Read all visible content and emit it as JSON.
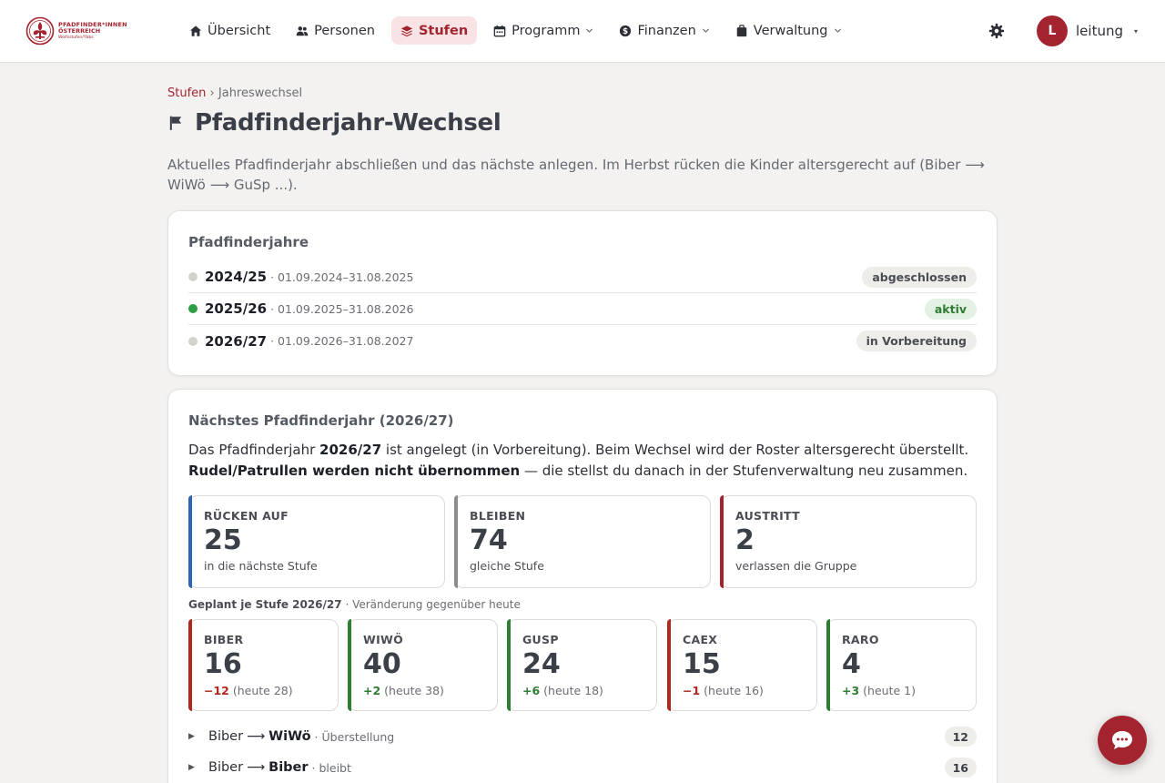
{
  "brand": {
    "line1": "PFADFINDER*INNEN",
    "line2": "ÖSTERREICH",
    "line3": "Wolfsstufen/Ybbs",
    "color": "#a3242f"
  },
  "nav": {
    "items": [
      {
        "label": "Übersicht",
        "icon": "home-icon"
      },
      {
        "label": "Personen",
        "icon": "users-icon"
      },
      {
        "label": "Stufen",
        "icon": "layers-icon",
        "active": true
      },
      {
        "label": "Programm",
        "icon": "calendar-icon",
        "dropdown": true
      },
      {
        "label": "Finanzen",
        "icon": "dollar-icon",
        "dropdown": true
      },
      {
        "label": "Verwaltung",
        "icon": "briefcase-icon",
        "dropdown": true
      }
    ],
    "settings_icon": "gear-icon",
    "user": {
      "initial": "L",
      "name": "leitung",
      "caret": "▾"
    }
  },
  "breadcrumb": {
    "parent": "Stufen",
    "separator": "›",
    "current": "Jahreswechsel"
  },
  "page": {
    "title": "Pfadfinderjahr-Wechsel",
    "title_icon": "flag-icon",
    "lead": "Aktuelles Pfadfinderjahr abschließen und das nächste anlegen. Im Herbst rücken die Kinder altersgerecht auf (Biber ⟶ WiWö ⟶ GuSp ...)."
  },
  "years_card": {
    "title": "Pfadfinderjahre",
    "rows": [
      {
        "name": "2024/25",
        "dates": "· 01.09.2024–31.08.2025",
        "status": "abgeschlossen",
        "dot_color": "#d4d2cf",
        "badge": "grey"
      },
      {
        "name": "2025/26",
        "dates": "· 01.09.2025–31.08.2026",
        "status": "aktiv",
        "dot_color": "#2e9e44",
        "badge": "green"
      },
      {
        "name": "2026/27",
        "dates": "· 01.09.2026–31.08.2027",
        "status": "in Vorbereitung",
        "dot_color": "#d4d2cf",
        "badge": "grey"
      }
    ]
  },
  "next_card": {
    "title": "Nächstes Pfadfinderjahr (2026/27)",
    "intro_a": "Das Pfadfinderjahr ",
    "intro_year": "2026/27",
    "intro_b": " ist angelegt (in Vorbereitung). Beim Wechsel wird der Roster altersgerecht überstellt.",
    "intro_bold": "Rudel/Patrullen werden nicht übernommen",
    "intro_c": " — die stellst du danach in der Stufenverwaltung neu zusammen.",
    "stats": [
      {
        "label": "RÜCKEN AUF",
        "value": "25",
        "sub": "in die nächste Stufe",
        "color": "#2f64b5"
      },
      {
        "label": "BLEIBEN",
        "value": "74",
        "sub": "gleiche Stufe",
        "color": "#8c8c8c"
      },
      {
        "label": "AUSTRITT",
        "value": "2",
        "sub": "verlassen die Gruppe",
        "color": "#a3242f"
      }
    ],
    "plan_title": "Geplant je Stufe 2026/27",
    "plan_note": "· Veränderung gegenüber heute",
    "tiles": [
      {
        "label": "BIBER",
        "value": "16",
        "delta": "−12",
        "delta_kind": "neg",
        "today": "(heute 28)",
        "color": "#b3261e"
      },
      {
        "label": "WIWÖ",
        "value": "40",
        "delta": "+2",
        "delta_kind": "pos",
        "today": "(heute 38)",
        "color": "#2e7d32"
      },
      {
        "label": "GUSP",
        "value": "24",
        "delta": "+6",
        "delta_kind": "pos",
        "today": "(heute 18)",
        "color": "#2e7d32"
      },
      {
        "label": "CAEX",
        "value": "15",
        "delta": "−1",
        "delta_kind": "neg",
        "today": "(heute 16)",
        "color": "#b3261e"
      },
      {
        "label": "RARO",
        "value": "4",
        "delta": "+3",
        "delta_kind": "pos",
        "today": "(heute 1)",
        "color": "#2e7d32"
      }
    ],
    "transitions": [
      {
        "toggle": "▶",
        "from": "Biber",
        "arrow": "⟶",
        "to": "WiWö",
        "kind": "· Überstellung",
        "count": "12"
      },
      {
        "toggle": "▶",
        "from": "Biber",
        "arrow": "⟶",
        "to": "Biber",
        "kind": "· bleibt",
        "count": "16"
      }
    ]
  },
  "chat": {
    "icon": "chat-bubble-icon"
  }
}
